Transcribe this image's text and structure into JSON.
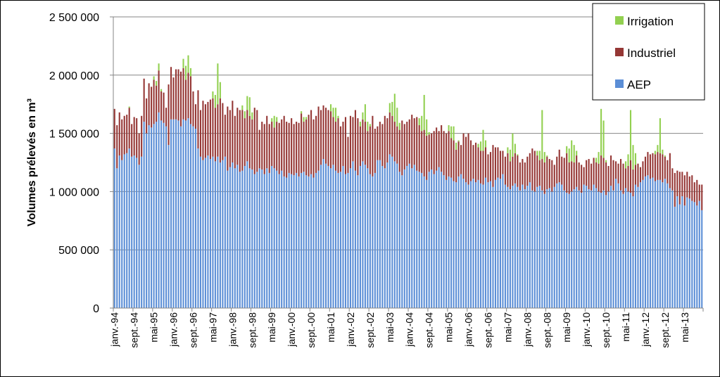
{
  "chart_data": {
    "type": "bar",
    "stacked": true,
    "title": "",
    "xlabel": "",
    "ylabel": "Volumes prélevés  en m³",
    "ylim": [
      0,
      2500000
    ],
    "yticks": [
      0,
      500000,
      1000000,
      1500000,
      2000000,
      2500000
    ],
    "ytick_labels": [
      "0",
      "500 000",
      "1 000 000",
      "1 500 000",
      "2 000 000",
      "2 500 000"
    ],
    "grid": true,
    "legend_position": "top-right",
    "x_tick_labels": [
      "janv.-94",
      "sept.-94",
      "mai-95",
      "janv.-96",
      "sept.-96",
      "mai-97",
      "janv.-98",
      "sept.-98",
      "mai-99",
      "janv.-00",
      "sept.-00",
      "mai-01",
      "janv.-02",
      "sept.-02",
      "mai-03",
      "janv.-04",
      "sept.-04",
      "mai-05",
      "janv.-06",
      "sept.-06",
      "mai-07",
      "janv.-08",
      "sept.-08",
      "mai-09",
      "janv.-10",
      "sept.-10",
      "mai-11",
      "janv.-12",
      "sept.-12",
      "mai-13"
    ],
    "x_tick_every_months": 8,
    "series": [
      {
        "name": "AEP",
        "color": "#5B8ED6",
        "values": [
          1370000,
          1200000,
          1310000,
          1270000,
          1320000,
          1330000,
          1370000,
          1300000,
          1310000,
          1290000,
          1230000,
          1300000,
          1600000,
          1500000,
          1570000,
          1550000,
          1580000,
          1600000,
          1680000,
          1610000,
          1590000,
          1560000,
          1400000,
          1620000,
          1620000,
          1620000,
          1610000,
          1560000,
          1620000,
          1610000,
          1630000,
          1580000,
          1560000,
          1540000,
          1370000,
          1300000,
          1270000,
          1290000,
          1310000,
          1280000,
          1300000,
          1260000,
          1300000,
          1250000,
          1270000,
          1300000,
          1180000,
          1210000,
          1250000,
          1200000,
          1230000,
          1170000,
          1180000,
          1220000,
          1260000,
          1200000,
          1190000,
          1150000,
          1170000,
          1200000,
          1190000,
          1150000,
          1200000,
          1160000,
          1220000,
          1200000,
          1180000,
          1150000,
          1180000,
          1130000,
          1120000,
          1160000,
          1150000,
          1140000,
          1160000,
          1130000,
          1160000,
          1170000,
          1140000,
          1130000,
          1150000,
          1120000,
          1160000,
          1180000,
          1230000,
          1280000,
          1240000,
          1220000,
          1200000,
          1230000,
          1180000,
          1160000,
          1170000,
          1220000,
          1150000,
          1160000,
          1200000,
          1260000,
          1180000,
          1140000,
          1220000,
          1260000,
          1230000,
          1200000,
          1150000,
          1130000,
          1160000,
          1270000,
          1270000,
          1220000,
          1200000,
          1250000,
          1320000,
          1300000,
          1260000,
          1240000,
          1170000,
          1140000,
          1190000,
          1220000,
          1240000,
          1200000,
          1230000,
          1180000,
          1170000,
          1160000,
          1130000,
          1100000,
          1170000,
          1190000,
          1150000,
          1180000,
          1210000,
          1170000,
          1140000,
          1100000,
          1130000,
          1120000,
          1090000,
          1080000,
          1130000,
          1150000,
          1110000,
          1080000,
          1060000,
          1090000,
          1110000,
          1080000,
          1100000,
          1070000,
          1060000,
          1120000,
          1080000,
          1090000,
          1040000,
          1100000,
          1120000,
          1110000,
          1150000,
          1060000,
          1040000,
          1020000,
          1050000,
          1070000,
          1040000,
          1010000,
          1060000,
          1020000,
          1050000,
          1080000,
          1010000,
          1000000,
          1040000,
          1050000,
          1010000,
          980000,
          1020000,
          1030000,
          1000000,
          1040000,
          1070000,
          1080000,
          1060000,
          1010000,
          990000,
          980000,
          1000000,
          1020000,
          1040000,
          1010000,
          990000,
          1060000,
          1050000,
          1020000,
          1010000,
          1060000,
          1030000,
          1000000,
          990000,
          1010000,
          970000,
          1000000,
          1050000,
          1010000,
          1110000,
          1070000,
          1010000,
          980000,
          1030000,
          1000000,
          990000,
          960000,
          1060000,
          1040000,
          1080000,
          1100000,
          1130000,
          1140000,
          1110000,
          1120000,
          1090000,
          1100000,
          1100000,
          1080000,
          1110000,
          1070000,
          1030000,
          1010000,
          870000,
          960000,
          890000,
          960000,
          880000,
          950000,
          940000,
          920000,
          910000,
          880000,
          920000,
          840000
        ]
      },
      {
        "name": "Industriel",
        "color": "#953735",
        "values": [
          340000,
          370000,
          370000,
          350000,
          330000,
          330000,
          350000,
          280000,
          330000,
          340000,
          270000,
          350000,
          370000,
          300000,
          360000,
          350000,
          380000,
          310000,
          360000,
          250000,
          260000,
          160000,
          520000,
          450000,
          360000,
          430000,
          440000,
          470000,
          440000,
          350000,
          390000,
          410000,
          300000,
          210000,
          500000,
          400000,
          510000,
          460000,
          460000,
          510000,
          500000,
          460000,
          450000,
          550000,
          490000,
          360000,
          550000,
          490000,
          530000,
          450000,
          490000,
          530000,
          520000,
          410000,
          440000,
          450000,
          430000,
          570000,
          530000,
          330000,
          410000,
          430000,
          450000,
          420000,
          380000,
          350000,
          420000,
          440000,
          440000,
          520000,
          480000,
          430000,
          480000,
          440000,
          440000,
          460000,
          510000,
          430000,
          480000,
          530000,
          550000,
          500000,
          490000,
          550000,
          470000,
          460000,
          480000,
          480000,
          490000,
          410000,
          420000,
          470000,
          390000,
          380000,
          490000,
          310000,
          450000,
          380000,
          520000,
          490000,
          340000,
          360000,
          370000,
          320000,
          410000,
          520000,
          380000,
          290000,
          330000,
          360000,
          450000,
          380000,
          360000,
          350000,
          340000,
          320000,
          360000,
          470000,
          390000,
          380000,
          380000,
          460000,
          400000,
          460000,
          400000,
          360000,
          400000,
          380000,
          320000,
          310000,
          370000,
          370000,
          310000,
          400000,
          380000,
          400000,
          390000,
          340000,
          350000,
          280000,
          300000,
          250000,
          390000,
          390000,
          440000,
          350000,
          290000,
          340000,
          280000,
          280000,
          290000,
          260000,
          240000,
          250000,
          360000,
          280000,
          260000,
          240000,
          200000,
          240000,
          290000,
          240000,
          250000,
          260000,
          270000,
          240000,
          220000,
          230000,
          250000,
          250000,
          360000,
          350000,
          270000,
          220000,
          270000,
          270000,
          280000,
          250000,
          270000,
          190000,
          230000,
          280000,
          240000,
          280000,
          340000,
          270000,
          260000,
          230000,
          270000,
          240000,
          240000,
          150000,
          220000,
          260000,
          230000,
          230000,
          220000,
          240000,
          320000,
          280000,
          280000,
          220000,
          260000,
          260000,
          150000,
          170000,
          270000,
          260000,
          170000,
          220000,
          280000,
          230000,
          170000,
          200000,
          130000,
          160000,
          170000,
          200000,
          210000,
          210000,
          230000,
          240000,
          230000,
          240000,
          190000,
          200000,
          300000,
          190000,
          290000,
          220000,
          280000,
          210000,
          260000,
          220000,
          190000,
          220000,
          170000,
          220000,
          140000,
          220000
        ]
      },
      {
        "name": "Irrigation",
        "color": "#92D050",
        "values": [
          0,
          0,
          0,
          0,
          0,
          0,
          10000,
          0,
          0,
          0,
          0,
          0,
          0,
          0,
          0,
          0,
          30000,
          40000,
          60000,
          20000,
          0,
          0,
          0,
          0,
          0,
          0,
          0,
          0,
          80000,
          120000,
          150000,
          70000,
          0,
          0,
          0,
          0,
          0,
          0,
          0,
          0,
          60000,
          110000,
          350000,
          140000,
          0,
          0,
          0,
          0,
          0,
          0,
          0,
          0,
          40000,
          60000,
          120000,
          160000,
          60000,
          0,
          0,
          0,
          0,
          0,
          0,
          0,
          30000,
          100000,
          40000,
          0,
          0,
          0,
          0,
          0,
          0,
          0,
          0,
          0,
          20000,
          40000,
          20000,
          0,
          0,
          0,
          0,
          0,
          0,
          0,
          0,
          0,
          60000,
          80000,
          120000,
          20000,
          0,
          0,
          0,
          0,
          0,
          0,
          0,
          0,
          40000,
          60000,
          150000,
          80000,
          20000,
          0,
          0,
          0,
          0,
          0,
          0,
          0,
          80000,
          120000,
          240000,
          160000,
          60000,
          0,
          0,
          0,
          0,
          0,
          0,
          0,
          60000,
          130000,
          300000,
          140000,
          20000,
          0,
          0,
          0,
          0,
          0,
          0,
          0,
          50000,
          100000,
          120000,
          60000,
          10000,
          0,
          0,
          0,
          0,
          0,
          0,
          0,
          30000,
          80000,
          180000,
          60000,
          0,
          0,
          0,
          0,
          0,
          0,
          0,
          0,
          50000,
          100000,
          200000,
          80000,
          10000,
          0,
          0,
          0,
          0,
          0,
          0,
          0,
          40000,
          80000,
          420000,
          90000,
          10000,
          0,
          0,
          0,
          0,
          0,
          0,
          0,
          60000,
          120000,
          180000,
          150000,
          40000,
          0,
          0,
          0,
          0,
          0,
          0,
          0,
          40000,
          100000,
          400000,
          320000,
          20000,
          0,
          0,
          0,
          0,
          0,
          0,
          0,
          60000,
          100000,
          430000,
          210000,
          100000,
          0,
          0,
          0,
          0,
          0,
          0,
          0,
          30000,
          60000,
          300000,
          40000,
          10000,
          0,
          0,
          0,
          0,
          0,
          0,
          0,
          0,
          0,
          0,
          0,
          0,
          0,
          0,
          0
        ]
      }
    ],
    "legend_order": [
      "Irrigation",
      "Industriel",
      "AEP"
    ]
  }
}
